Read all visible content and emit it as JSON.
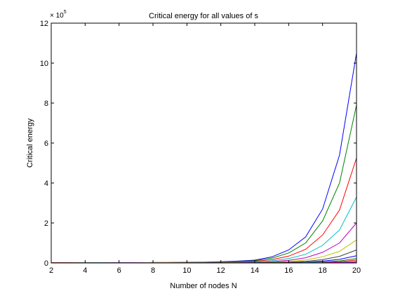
{
  "chart_data": {
    "type": "line",
    "title": "Critical energy for all values of s",
    "xlabel": "Number of nodes N",
    "ylabel": "Critical energy",
    "y_exponent_label": "× 10",
    "y_exponent_power": "5",
    "xlim": [
      2,
      20
    ],
    "ylim": [
      0,
      12
    ],
    "x_ticks": [
      2,
      4,
      6,
      8,
      10,
      12,
      14,
      16,
      18,
      20
    ],
    "y_ticks": [
      0,
      2,
      4,
      6,
      8,
      10,
      12
    ],
    "grid": false,
    "legend": "none",
    "x": [
      2,
      3,
      4,
      5,
      6,
      7,
      8,
      9,
      10,
      11,
      12,
      13,
      14,
      15,
      16,
      17,
      18,
      19,
      20
    ],
    "series": [
      {
        "color": "#0000ff",
        "values": [
          0.01,
          0.01,
          0.01,
          0.01,
          0.01,
          0.01,
          0.02,
          0.02,
          0.03,
          0.04,
          0.06,
          0.09,
          0.14,
          0.3,
          0.65,
          1.3,
          2.7,
          5.4,
          10.5
        ]
      },
      {
        "color": "#008000",
        "values": [
          0.01,
          0.01,
          0.01,
          0.01,
          0.01,
          0.01,
          0.02,
          0.02,
          0.02,
          0.03,
          0.05,
          0.07,
          0.11,
          0.24,
          0.5,
          1.0,
          2.1,
          4.0,
          7.9
        ]
      },
      {
        "color": "#ff0000",
        "values": [
          0.01,
          0.01,
          0.01,
          0.01,
          0.01,
          0.01,
          0.01,
          0.02,
          0.02,
          0.02,
          0.04,
          0.05,
          0.08,
          0.16,
          0.34,
          0.68,
          1.4,
          2.65,
          5.25
        ]
      },
      {
        "color": "#00bfbf",
        "values": [
          0.0,
          0.0,
          0.01,
          0.01,
          0.01,
          0.01,
          0.01,
          0.01,
          0.01,
          0.02,
          0.03,
          0.04,
          0.05,
          0.1,
          0.22,
          0.43,
          0.88,
          1.65,
          3.3
        ]
      },
      {
        "color": "#bf00bf",
        "values": [
          0.0,
          0.0,
          0.0,
          0.0,
          0.01,
          0.01,
          0.01,
          0.01,
          0.01,
          0.01,
          0.02,
          0.02,
          0.03,
          0.06,
          0.13,
          0.26,
          0.53,
          1.0,
          2.0
        ]
      },
      {
        "color": "#bfbf00",
        "values": [
          0.0,
          0.0,
          0.0,
          0.0,
          0.0,
          0.0,
          0.01,
          0.01,
          0.01,
          0.01,
          0.01,
          0.01,
          0.02,
          0.04,
          0.08,
          0.15,
          0.31,
          0.58,
          1.15
        ]
      },
      {
        "color": "#404040",
        "values": [
          0.0,
          0.0,
          0.0,
          0.0,
          0.0,
          0.0,
          0.0,
          0.0,
          0.01,
          0.01,
          0.01,
          0.01,
          0.01,
          0.02,
          0.04,
          0.08,
          0.17,
          0.33,
          0.65
        ]
      },
      {
        "color": "#0000ff",
        "values": [
          0.0,
          0.0,
          0.0,
          0.0,
          0.0,
          0.0,
          0.0,
          0.0,
          0.0,
          0.0,
          0.0,
          0.0,
          0.01,
          0.01,
          0.02,
          0.04,
          0.09,
          0.18,
          0.36
        ]
      },
      {
        "color": "#008000",
        "values": [
          0.0,
          0.0,
          0.0,
          0.0,
          0.0,
          0.0,
          0.0,
          0.0,
          0.0,
          0.0,
          0.0,
          0.0,
          0.0,
          0.01,
          0.01,
          0.02,
          0.05,
          0.1,
          0.22
        ]
      },
      {
        "color": "#ff0000",
        "values": [
          0.0,
          0.0,
          0.0,
          0.0,
          0.0,
          0.0,
          0.0,
          0.0,
          0.0,
          0.0,
          0.0,
          0.0,
          0.0,
          0.0,
          0.01,
          0.01,
          0.03,
          0.06,
          0.14
        ]
      },
      {
        "color": "#00bfbf",
        "values": [
          0.0,
          0.0,
          0.0,
          0.0,
          0.0,
          0.0,
          0.0,
          0.0,
          0.0,
          0.0,
          0.0,
          0.0,
          0.0,
          0.0,
          0.0,
          0.01,
          0.02,
          0.03,
          0.08
        ]
      },
      {
        "color": "#bf00bf",
        "values": [
          0.0,
          0.0,
          0.0,
          0.0,
          0.0,
          0.0,
          0.0,
          0.0,
          0.0,
          0.0,
          0.0,
          0.0,
          0.0,
          0.0,
          0.0,
          0.0,
          0.01,
          0.02,
          0.04
        ]
      }
    ]
  }
}
